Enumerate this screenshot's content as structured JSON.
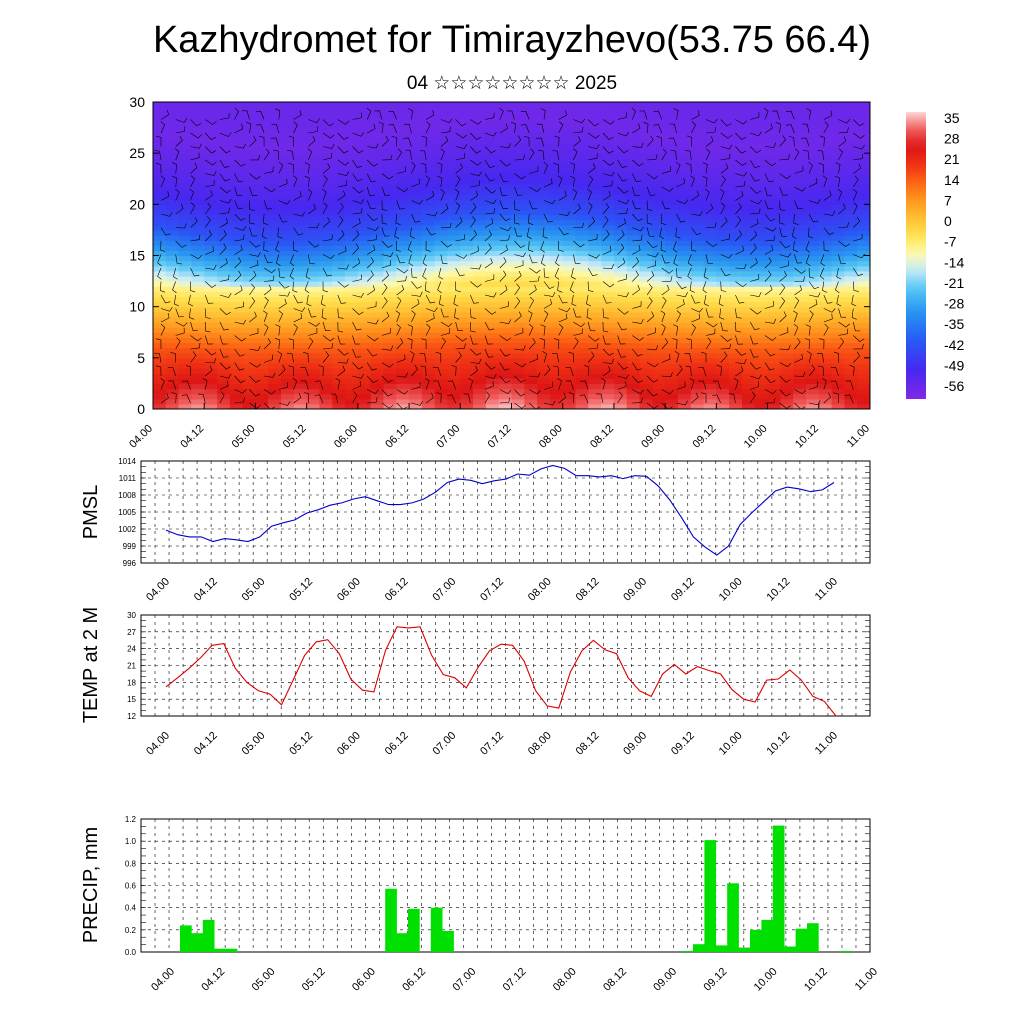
{
  "title": "Kazhydromet for Timirayzhevo(53.75 66.4)",
  "subtitle": "04 ☆☆☆☆☆☆☆☆ 2025",
  "time_ticks": [
    "04.00",
    "04.12",
    "05.00",
    "05.12",
    "06.00",
    "06.12",
    "07.00",
    "07.12",
    "08.00",
    "08.12",
    "09.00",
    "09.12",
    "10.00",
    "10.12",
    "11.00"
  ],
  "colors": {
    "pmsl_line": "#0000cc",
    "temp_line": "#dd0000",
    "precip_bar": "#00e000",
    "wind_barb": "#000000"
  },
  "chart_data": [
    {
      "type": "heatmap",
      "description_axis": "height (km) vs time",
      "y_ticks": [
        "0",
        "5",
        "10",
        "15",
        "20",
        "25",
        "30"
      ],
      "ylim": [
        0,
        30
      ],
      "colorbar_labels": [
        "35",
        "28",
        "21",
        "14",
        "7",
        "0",
        "-7",
        "-14",
        "-21",
        "-28",
        "-35",
        "-42",
        "-49",
        "-56"
      ],
      "colorbar_range": [
        -60,
        38
      ],
      "levels_km": [
        0,
        3,
        6,
        9,
        12,
        15,
        18,
        21,
        24,
        27,
        30
      ],
      "temperature_profile": [
        32,
        24,
        16,
        4,
        -8,
        -26,
        -42,
        -50,
        -54,
        -57,
        -56
      ],
      "overlay": "wind barbs"
    },
    {
      "type": "line",
      "ylabel": "PMSL",
      "y_ticks": [
        996,
        999,
        1002,
        1005,
        1008,
        1011,
        1014
      ],
      "ylim": [
        996,
        1014
      ],
      "series": [
        {
          "values": [
            1001.8,
            1001.0,
            1000.6,
            1000.6,
            999.8,
            1000.3,
            1000.1,
            999.8,
            1000.6,
            1002.5,
            1003.1,
            1003.6,
            1004.8,
            1005.4,
            1006.2,
            1006.6,
            1007.3,
            1007.7,
            1007.0,
            1006.3,
            1006.3,
            1006.6,
            1007.3,
            1008.5,
            1010.2,
            1010.8,
            1010.6,
            1010.0,
            1010.5,
            1010.8,
            1011.7,
            1011.5,
            1012.6,
            1013.2,
            1012.7,
            1011.4,
            1011.4,
            1011.2,
            1011.4,
            1010.9,
            1011.4,
            1011.3,
            1009.6,
            1007.1,
            1004.0,
            1000.6,
            998.8,
            997.4,
            999.0,
            1002.8,
            1004.9,
            1006.8,
            1008.7,
            1009.4,
            1009.1,
            1008.6,
            1008.9,
            1010.2
          ]
        }
      ]
    },
    {
      "type": "line",
      "ylabel": "TEMP at 2 M",
      "y_ticks": [
        12,
        15,
        18,
        21,
        24,
        27,
        30
      ],
      "ylim": [
        12,
        30
      ],
      "series": [
        {
          "values": [
            17.2,
            18.8,
            20.5,
            22.4,
            24.6,
            24.9,
            20.5,
            18.0,
            16.5,
            15.9,
            14.0,
            18.4,
            22.8,
            25.2,
            25.6,
            23.1,
            18.6,
            16.6,
            16.3,
            23.7,
            27.9,
            27.7,
            27.9,
            22.8,
            19.4,
            18.8,
            17.0,
            20.6,
            23.6,
            24.8,
            24.6,
            21.8,
            16.5,
            13.8,
            13.4,
            19.8,
            23.6,
            25.5,
            23.8,
            23.1,
            18.8,
            16.5,
            15.5,
            19.5,
            21.2,
            19.5,
            20.8,
            20.1,
            19.5,
            16.7,
            15.0,
            14.5,
            18.4,
            18.6,
            20.2,
            18.4,
            15.5,
            14.6,
            12.0
          ]
        }
      ]
    },
    {
      "type": "bar",
      "ylabel": "PRECIP, mm",
      "y_ticks": [
        "0.0",
        "0.2",
        "0.4",
        "0.6",
        "0.8",
        "1.0",
        "1.2"
      ],
      "ylim": [
        0,
        1.2
      ],
      "bar_index_start": 3,
      "values": [
        0.24,
        0.17,
        0.29,
        0.03,
        0.03,
        0,
        0,
        0,
        0,
        0,
        0,
        0,
        0,
        0,
        0,
        0,
        0,
        0,
        0.57,
        0.17,
        0.39,
        0,
        0.4,
        0.19,
        0,
        0,
        0,
        0,
        0,
        0,
        0,
        0,
        0,
        0,
        0,
        0,
        0,
        0,
        0,
        0,
        0,
        0,
        0,
        0,
        0.01,
        0.07,
        1.01,
        0.06,
        0.62,
        0.04,
        0.2,
        0.29,
        1.14,
        0.05,
        0.21,
        0.26,
        0,
        0,
        0.01
      ]
    }
  ]
}
